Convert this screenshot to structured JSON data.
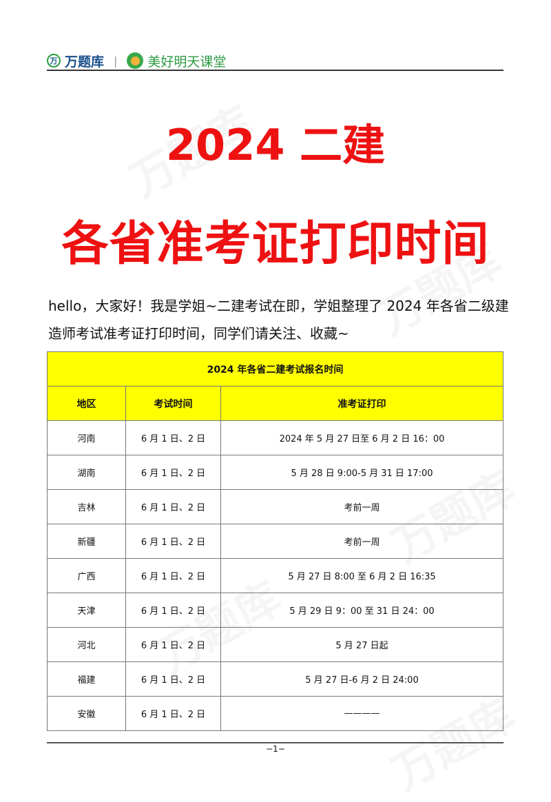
{
  "header": {
    "logo_icon_text": "万",
    "brand_primary": "万题库",
    "separator": "|",
    "brand_secondary": "美好明天课堂"
  },
  "title": {
    "line1": "2024 二建",
    "line2": "各省准考证打印时间"
  },
  "intro": "hello，大家好！我是学姐~二建考试在即，学姐整理了 2024 年各省二级建造师考试准考证打印时间，同学们请关注、收藏~",
  "table": {
    "caption": "2024 年各省二建考试报名时间",
    "headers": [
      "地区",
      "考试时间",
      "准考证打印"
    ],
    "rows": [
      [
        "河南",
        "6 月 1 日、2 日",
        "2024 年 5 月 27 日至 6 月 2 日 16：00"
      ],
      [
        "湖南",
        "6 月 1 日、2 日",
        "5 月 28 日 9:00-5 月 31 日 17:00"
      ],
      [
        "吉林",
        "6 月 1 日、2 日",
        "考前一周"
      ],
      [
        "新疆",
        "6 月 1 日、2 日",
        "考前一周"
      ],
      [
        "广西",
        "6 月 1 日、2 日",
        "5 月 27 日 8:00 至 6 月 2 日 16:35"
      ],
      [
        "天津",
        "6 月 1 日、2 日",
        "5 月 29 日 9：00 至 31 日 24：00"
      ],
      [
        "河北",
        "6 月 1 日、2 日",
        "5 月 27 日起"
      ],
      [
        "福建",
        "6 月 1 日、2 日",
        "5 月 27 日-6 月 2 日 24:00"
      ],
      [
        "安徽",
        "6 月 1 日、2 日",
        "————"
      ]
    ]
  },
  "footer": {
    "page": "−1−"
  },
  "watermark": "万题库",
  "colors": {
    "title": "#ee1111",
    "table_header": "#ffff00",
    "brand_green": "#2d9a43"
  }
}
